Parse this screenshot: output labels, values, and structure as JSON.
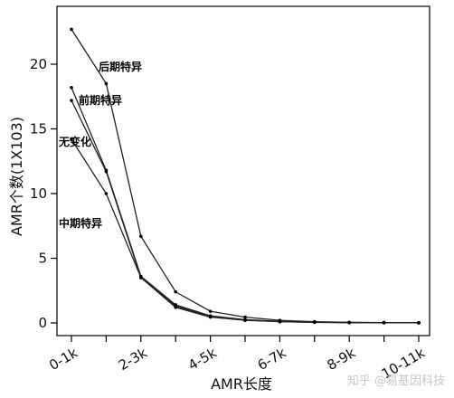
{
  "chart_data": {
    "type": "line",
    "xlabel": "AMR长度",
    "ylabel": "AMR个数(1X103)",
    "x_tick_labels": [
      "0-1k",
      "2-3k",
      "4-5k",
      "6-7k",
      "8-9k",
      "10-11k"
    ],
    "x": [
      0,
      1,
      2,
      3,
      4,
      5,
      6,
      7,
      8,
      9,
      10
    ],
    "y_ticks": [
      0,
      5,
      10,
      15,
      20
    ],
    "ylim": [
      0,
      24
    ],
    "series": [
      {
        "name": "后期特异",
        "values": [
          22.7,
          18.5,
          6.7,
          2.4,
          0.9,
          0.45,
          0.2,
          0.1,
          0.05,
          0.03,
          0.02
        ]
      },
      {
        "name": "前期特异",
        "values": [
          18.2,
          11.8,
          3.6,
          1.4,
          0.55,
          0.25,
          0.12,
          0.06,
          0.03,
          0.02,
          0.01
        ]
      },
      {
        "name": "无变化",
        "values": [
          17.2,
          11.7,
          3.5,
          1.3,
          0.5,
          0.22,
          0.1,
          0.05,
          0.03,
          0.02,
          0.01
        ]
      },
      {
        "name": "中期特异",
        "values": [
          14.2,
          10.0,
          3.5,
          1.2,
          0.45,
          0.2,
          0.1,
          0.05,
          0.02,
          0.01,
          0.01
        ]
      }
    ]
  },
  "watermark": "知乎 @易基因科技"
}
